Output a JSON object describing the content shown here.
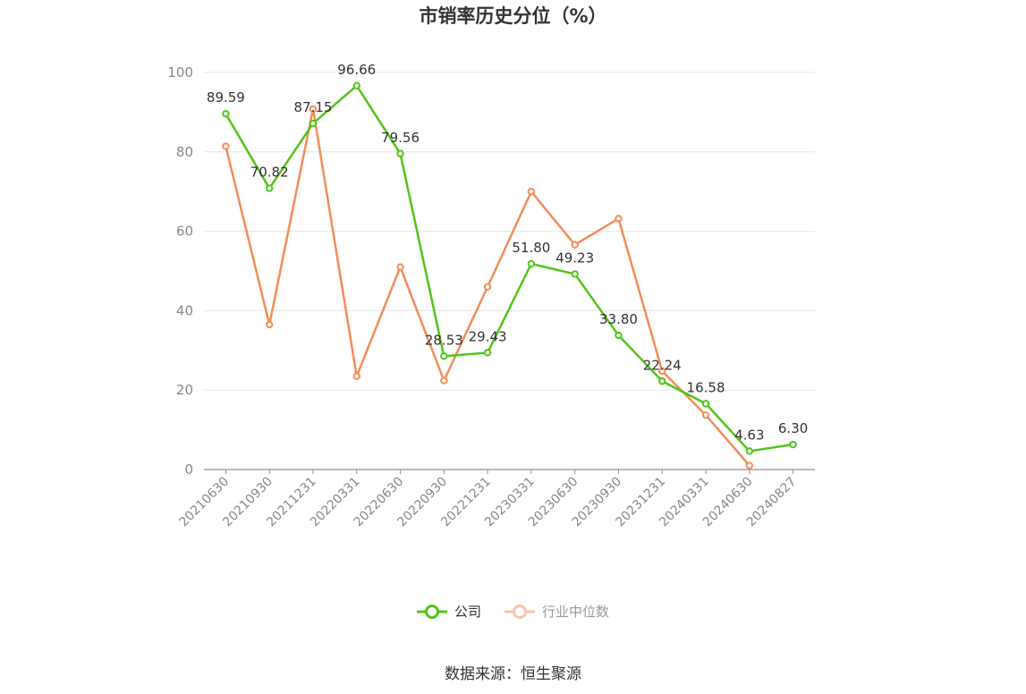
{
  "chart_data": {
    "type": "line",
    "title": "市销率历史分位（%）",
    "categories": [
      "20210630",
      "20210930",
      "20211231",
      "20220331",
      "20220630",
      "20220930",
      "20221231",
      "20230331",
      "20230630",
      "20230930",
      "20231231",
      "20240331",
      "20240630",
      "20240827"
    ],
    "ylim": [
      0,
      100
    ],
    "yticks": [
      0,
      20,
      40,
      60,
      80,
      100
    ],
    "grid": true,
    "legend_position": "bottom",
    "series": [
      {
        "name": "公司",
        "color": "#52c41a",
        "values": [
          89.59,
          70.82,
          87.15,
          96.66,
          79.56,
          28.53,
          29.43,
          51.8,
          49.23,
          33.8,
          22.24,
          16.58,
          4.63,
          6.3
        ],
        "labels": [
          "89.59",
          "70.82",
          "87.15",
          "96.66",
          "79.56",
          "28.53",
          "29.43",
          "51.80",
          "49.23",
          "33.80",
          "22.24",
          "16.58",
          "4.63",
          "6.30"
        ]
      },
      {
        "name": "行业中位数",
        "color": "#f28c5a",
        "values": [
          81.4,
          36.5,
          90.8,
          23.5,
          51.0,
          22.4,
          46.0,
          70.0,
          56.6,
          63.2,
          24.8,
          13.7,
          1.0,
          null
        ]
      }
    ]
  },
  "source": "数据来源：恒生聚源"
}
